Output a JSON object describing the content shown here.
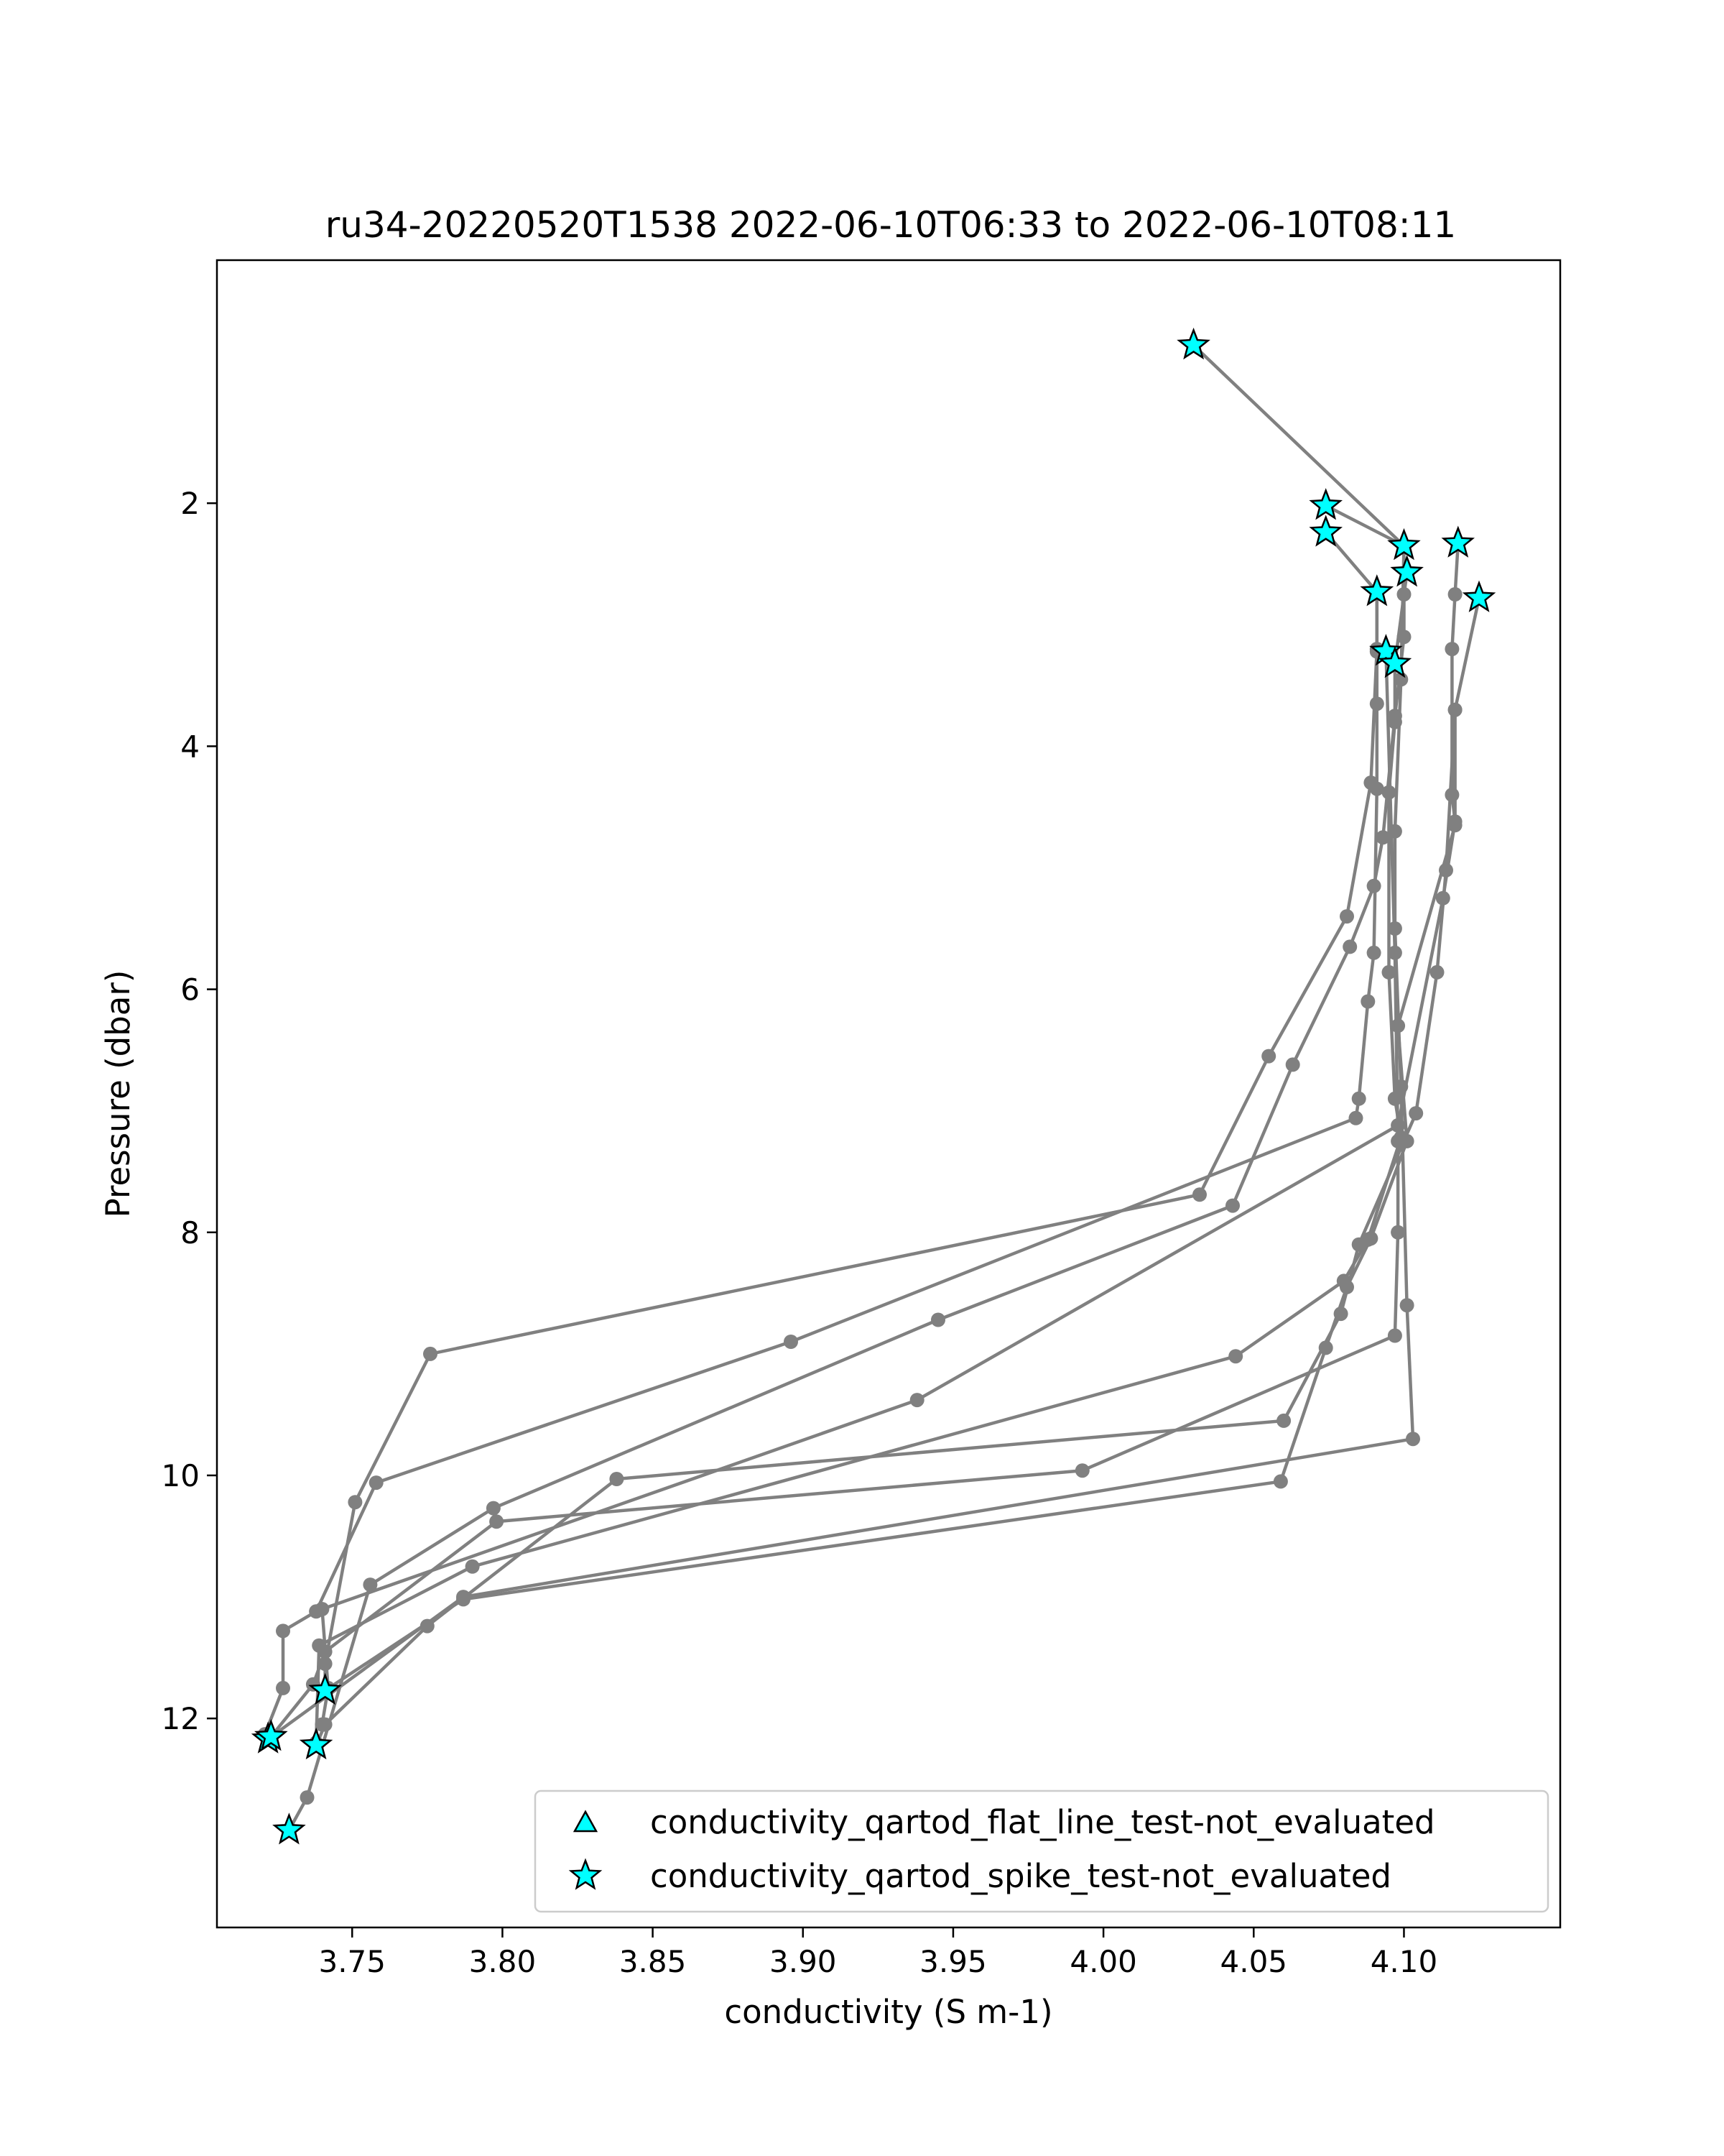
{
  "chart_data": {
    "type": "line",
    "title": "ru34-20220520T1538 2022-06-10T06:33 to 2022-06-10T08:11",
    "xlabel": "conductivity (S m-1)",
    "ylabel": "Pressure (dbar)",
    "xlim": [
      3.705,
      4.152
    ],
    "ylim": [
      13.72,
      0.0
    ],
    "y_inverted": true,
    "grid": false,
    "legend_position": "lower right",
    "xticks": [
      3.75,
      3.8,
      3.85,
      3.9,
      3.95,
      4.0,
      4.05,
      4.1
    ],
    "xtick_labels": [
      "3.75",
      "3.80",
      "3.85",
      "3.90",
      "3.95",
      "4.00",
      "4.05",
      "4.10"
    ],
    "yticks": [
      2,
      4,
      6,
      8,
      10,
      12
    ],
    "ytick_labels": [
      "2",
      "4",
      "6",
      "8",
      "10",
      "12"
    ],
    "colors": {
      "line": "#808080",
      "marker_fill": "#00ffff",
      "marker_edge": "#000000"
    },
    "legend": [
      {
        "label": "conductivity_qartod_flat_line_test-not_evaluated",
        "marker": "triangle"
      },
      {
        "label": "conductivity_qartod_spike_test-not_evaluated",
        "marker": "star"
      }
    ],
    "series": [
      {
        "points": [
          [
            4.03,
            0.7
          ],
          [
            4.1,
            2.35
          ],
          [
            4.1,
            2.75
          ],
          [
            4.1,
            3.1
          ],
          [
            4.097,
            3.75
          ],
          [
            4.093,
            4.75
          ],
          [
            4.09,
            5.15
          ],
          [
            4.082,
            5.65
          ],
          [
            4.063,
            6.62
          ],
          [
            4.043,
            7.78
          ],
          [
            3.945,
            8.72
          ],
          [
            3.797,
            10.27
          ],
          [
            3.756,
            10.9
          ],
          [
            3.735,
            12.65
          ],
          [
            3.729,
            12.92
          ]
        ]
      },
      {
        "points": [
          [
            4.125,
            2.78
          ],
          [
            4.117,
            3.7
          ],
          [
            4.114,
            5.02
          ],
          [
            4.111,
            5.86
          ],
          [
            4.104,
            7.02
          ],
          [
            4.085,
            8.1
          ],
          [
            4.079,
            8.67
          ],
          [
            4.06,
            9.55
          ],
          [
            3.838,
            10.03
          ],
          [
            3.775,
            11.24
          ],
          [
            3.741,
            12.05
          ],
          [
            3.738,
            12.22
          ]
        ]
      },
      {
        "points": [
          [
            4.074,
            2.02
          ],
          [
            4.1,
            2.35
          ],
          [
            4.099,
            3.45
          ],
          [
            4.097,
            4.7
          ],
          [
            4.097,
            5.5
          ],
          [
            4.099,
            6.8
          ],
          [
            4.101,
            8.6
          ],
          [
            4.103,
            9.7
          ],
          [
            3.787,
            11.0
          ],
          [
            3.722,
            12.17
          ]
        ]
      },
      {
        "points": [
          [
            4.074,
            2.24
          ],
          [
            4.091,
            2.73
          ],
          [
            4.091,
            3.2
          ],
          [
            4.089,
            4.3
          ],
          [
            4.081,
            5.4
          ],
          [
            4.055,
            6.55
          ],
          [
            4.032,
            7.69
          ],
          [
            3.776,
            9.0
          ],
          [
            3.751,
            10.22
          ],
          [
            3.741,
            11.55
          ],
          [
            3.741,
            11.77
          ]
        ]
      },
      {
        "points": [
          [
            4.101,
            2.57
          ],
          [
            4.097,
            3.32
          ],
          [
            4.097,
            3.8
          ],
          [
            4.095,
            4.38
          ],
          [
            4.095,
            5.86
          ],
          [
            4.097,
            6.9
          ],
          [
            4.099,
            7.22
          ],
          [
            4.088,
            8.06
          ],
          [
            4.08,
            8.4
          ],
          [
            4.044,
            9.02
          ],
          [
            3.79,
            10.75
          ],
          [
            3.739,
            11.4
          ],
          [
            3.738,
            12.2
          ]
        ]
      },
      {
        "points": [
          [
            4.118,
            2.33
          ],
          [
            4.117,
            2.75
          ],
          [
            4.116,
            3.2
          ],
          [
            4.116,
            4.4
          ],
          [
            4.117,
            4.62
          ],
          [
            4.113,
            5.25
          ],
          [
            4.098,
            7.12
          ],
          [
            3.938,
            9.38
          ],
          [
            3.74,
            11.1
          ],
          [
            3.742,
            11.75
          ],
          [
            3.74,
            12.05
          ]
        ]
      },
      {
        "points": [
          [
            4.091,
            2.73
          ],
          [
            4.091,
            3.22
          ],
          [
            4.091,
            3.65
          ],
          [
            4.091,
            4.35
          ],
          [
            4.09,
            5.7
          ],
          [
            4.088,
            6.1
          ],
          [
            4.085,
            6.9
          ],
          [
            4.084,
            7.06
          ],
          [
            3.896,
            8.9
          ],
          [
            3.758,
            10.06
          ],
          [
            3.738,
            11.12
          ],
          [
            3.727,
            11.28
          ],
          [
            3.727,
            11.75
          ],
          [
            3.721,
            12.13
          ]
        ]
      },
      {
        "points": [
          [
            4.094,
            3.22
          ],
          [
            4.097,
            5.7
          ],
          [
            4.098,
            7.25
          ],
          [
            4.098,
            8.0
          ],
          [
            4.097,
            8.85
          ],
          [
            3.993,
            9.96
          ],
          [
            3.798,
            10.38
          ],
          [
            3.741,
            11.45
          ],
          [
            3.737,
            11.72
          ],
          [
            3.723,
            12.15
          ]
        ]
      },
      {
        "points": [
          [
            4.117,
            3.7
          ],
          [
            4.117,
            4.65
          ],
          [
            4.098,
            6.3
          ],
          [
            4.101,
            7.25
          ],
          [
            4.089,
            8.05
          ],
          [
            4.081,
            8.45
          ],
          [
            4.074,
            8.95
          ],
          [
            4.059,
            10.05
          ],
          [
            3.787,
            11.02
          ],
          [
            3.741,
            11.77
          ]
        ]
      }
    ],
    "flagged_points": [
      [
        4.03,
        0.7
      ],
      [
        4.074,
        2.02
      ],
      [
        4.074,
        2.24
      ],
      [
        4.1,
        2.35
      ],
      [
        4.118,
        2.33
      ],
      [
        4.101,
        2.57
      ],
      [
        4.125,
        2.78
      ],
      [
        4.091,
        2.73
      ],
      [
        4.094,
        3.22
      ],
      [
        4.097,
        3.32
      ],
      [
        3.741,
        11.77
      ],
      [
        3.722,
        12.17
      ],
      [
        3.723,
        12.15
      ],
      [
        3.738,
        12.22
      ],
      [
        3.729,
        12.92
      ]
    ]
  }
}
